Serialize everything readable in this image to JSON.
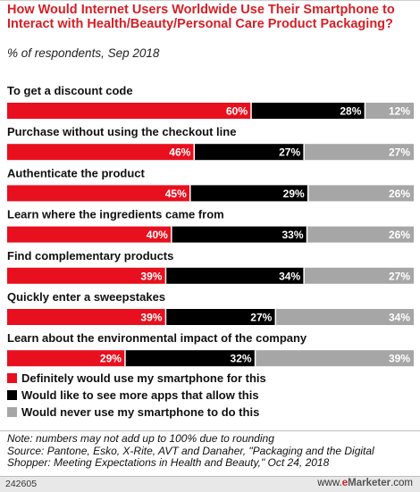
{
  "title": "How Would Internet Users Worldwide Use Their Smartphone to Interact with Health/Beauty/Personal Care Product Packaging?",
  "subtitle": "% of respondents, Sep 2018",
  "colors": {
    "title": "#d51f26",
    "series": [
      "#e8101e",
      "#000000",
      "#a6a6a6"
    ]
  },
  "chart_data": {
    "type": "bar",
    "orientation": "horizontal",
    "stacked": true,
    "categories": [
      "To get a discount code",
      "Purchase without using the checkout line",
      "Authenticate the product",
      "Learn where the ingredients came from",
      "Find complementary products",
      "Quickly enter a sweepstakes",
      "Learn about the environmental impact of the company"
    ],
    "series": [
      {
        "name": "Definitely would use my smartphone for this",
        "values": [
          60,
          46,
          45,
          40,
          39,
          39,
          29
        ]
      },
      {
        "name": "Would like to see more apps that allow this",
        "values": [
          28,
          27,
          29,
          33,
          34,
          27,
          32
        ]
      },
      {
        "name": "Would never use my smartphone to do this",
        "values": [
          12,
          27,
          26,
          26,
          27,
          34,
          39
        ]
      }
    ],
    "value_suffix": "%",
    "legend_position": "bottom-left"
  },
  "notes": {
    "note": "Note: numbers may not add up to 100% due to rounding",
    "source": "Source: Pantone, Esko, X-Rite, AVT and Danaher, \"Packaging and the Digital Shopper: Meeting Expectations in Health and Beauty,\" Oct 24, 2018"
  },
  "footer": {
    "id": "242605",
    "site_prefix": "www.",
    "site_e": "e",
    "site_brand": "Marketer",
    "site_suffix": ".com"
  }
}
